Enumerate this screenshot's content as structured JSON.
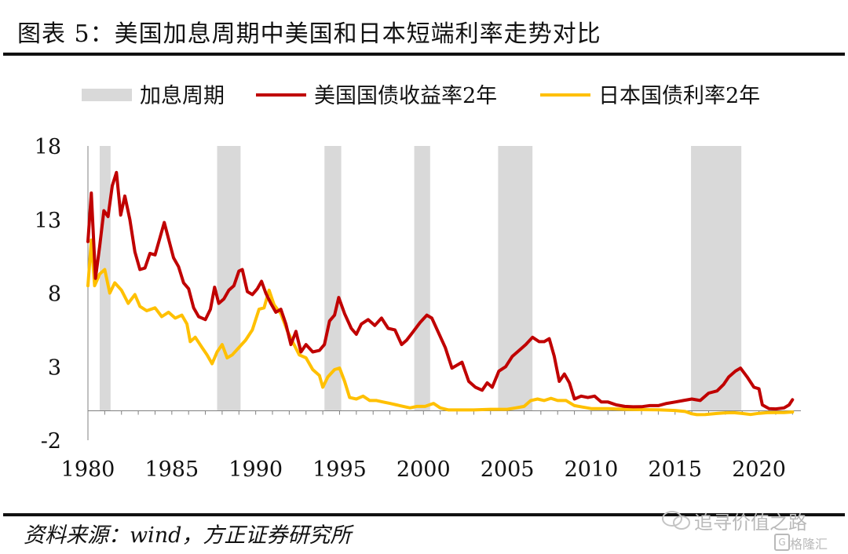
{
  "figure_title": "图表 5：美国加息周期中美国和日本短端利率走势对比",
  "source_note": "资料来源：wind，方正证券研究所",
  "watermark": {
    "line1": "追寻价值之路",
    "line2": "格隆汇",
    "badge": "G"
  },
  "colors": {
    "shade": "#d9d9d9",
    "us": "#c00000",
    "jp": "#ffc000",
    "axis": "#808080",
    "text": "#111111"
  },
  "chart_data": {
    "type": "line",
    "title": "",
    "xlabel": "",
    "ylabel": "",
    "xlim": [
      1980,
      2022.5
    ],
    "ylim": [
      -2,
      18
    ],
    "x_ticks": [
      1980,
      1985,
      1990,
      1995,
      2000,
      2005,
      2010,
      2015,
      2020
    ],
    "y_ticks": [
      -2,
      3,
      8,
      13,
      18
    ],
    "legend": {
      "placement": "top",
      "items": [
        {
          "label": "加息周期",
          "kind": "shade",
          "color": "#d9d9d9"
        },
        {
          "label": "美国国债收益率2年",
          "kind": "line",
          "color": "#c00000"
        },
        {
          "label": "日本国债利率2年",
          "kind": "line",
          "color": "#ffc000"
        }
      ]
    },
    "shaded_periods": [
      [
        1980.7,
        1981.35
      ],
      [
        1987.7,
        1989.1
      ],
      [
        1994.1,
        1995.1
      ],
      [
        1999.45,
        2000.4
      ],
      [
        2004.45,
        2006.5
      ],
      [
        2015.95,
        2018.95
      ]
    ],
    "series": [
      {
        "name": "美国国债收益率2年",
        "color": "#c00000",
        "points": [
          [
            1980.0,
            11.5
          ],
          [
            1980.2,
            14.8
          ],
          [
            1980.45,
            9.0
          ],
          [
            1980.7,
            11.2
          ],
          [
            1980.95,
            13.6
          ],
          [
            1981.2,
            13.2
          ],
          [
            1981.45,
            15.3
          ],
          [
            1981.7,
            16.2
          ],
          [
            1981.95,
            13.3
          ],
          [
            1982.2,
            14.6
          ],
          [
            1982.5,
            13.0
          ],
          [
            1982.8,
            10.8
          ],
          [
            1983.1,
            9.6
          ],
          [
            1983.4,
            9.7
          ],
          [
            1983.7,
            10.7
          ],
          [
            1984.0,
            10.6
          ],
          [
            1984.3,
            11.8
          ],
          [
            1984.55,
            12.8
          ],
          [
            1984.8,
            11.7
          ],
          [
            1985.1,
            10.4
          ],
          [
            1985.4,
            9.8
          ],
          [
            1985.7,
            8.7
          ],
          [
            1986.0,
            8.3
          ],
          [
            1986.3,
            7.0
          ],
          [
            1986.6,
            6.4
          ],
          [
            1987.0,
            6.2
          ],
          [
            1987.3,
            6.9
          ],
          [
            1987.55,
            8.4
          ],
          [
            1987.8,
            7.3
          ],
          [
            1988.1,
            7.6
          ],
          [
            1988.4,
            8.2
          ],
          [
            1988.7,
            8.5
          ],
          [
            1989.0,
            9.5
          ],
          [
            1989.2,
            9.6
          ],
          [
            1989.5,
            8.1
          ],
          [
            1989.8,
            7.9
          ],
          [
            1990.1,
            8.3
          ],
          [
            1990.35,
            8.8
          ],
          [
            1990.6,
            8.0
          ],
          [
            1990.9,
            7.3
          ],
          [
            1991.2,
            6.7
          ],
          [
            1991.5,
            6.9
          ],
          [
            1991.8,
            5.9
          ],
          [
            1992.1,
            4.5
          ],
          [
            1992.4,
            5.4
          ],
          [
            1992.7,
            4.0
          ],
          [
            1993.0,
            4.5
          ],
          [
            1993.4,
            4.0
          ],
          [
            1993.8,
            4.1
          ],
          [
            1994.1,
            4.5
          ],
          [
            1994.4,
            6.1
          ],
          [
            1994.7,
            6.5
          ],
          [
            1994.95,
            7.7
          ],
          [
            1995.3,
            6.6
          ],
          [
            1995.7,
            5.6
          ],
          [
            1996.0,
            5.2
          ],
          [
            1996.3,
            5.9
          ],
          [
            1996.7,
            6.2
          ],
          [
            1997.1,
            5.8
          ],
          [
            1997.5,
            6.3
          ],
          [
            1997.9,
            5.6
          ],
          [
            1998.3,
            5.5
          ],
          [
            1998.7,
            4.5
          ],
          [
            1999.0,
            4.8
          ],
          [
            1999.4,
            5.4
          ],
          [
            1999.8,
            6.0
          ],
          [
            2000.2,
            6.5
          ],
          [
            2000.5,
            6.3
          ],
          [
            2000.9,
            5.3
          ],
          [
            2001.3,
            4.3
          ],
          [
            2001.7,
            2.9
          ],
          [
            2002.0,
            3.1
          ],
          [
            2002.3,
            3.3
          ],
          [
            2002.7,
            2.0
          ],
          [
            2003.1,
            1.6
          ],
          [
            2003.5,
            1.4
          ],
          [
            2003.8,
            1.9
          ],
          [
            2004.1,
            1.6
          ],
          [
            2004.5,
            2.7
          ],
          [
            2004.9,
            3.0
          ],
          [
            2005.3,
            3.7
          ],
          [
            2005.7,
            4.1
          ],
          [
            2006.1,
            4.5
          ],
          [
            2006.5,
            5.0
          ],
          [
            2006.9,
            4.7
          ],
          [
            2007.2,
            4.7
          ],
          [
            2007.5,
            4.9
          ],
          [
            2007.8,
            3.7
          ],
          [
            2008.1,
            2.0
          ],
          [
            2008.4,
            2.5
          ],
          [
            2008.7,
            1.9
          ],
          [
            2009.0,
            0.8
          ],
          [
            2009.4,
            1.0
          ],
          [
            2009.8,
            0.9
          ],
          [
            2010.2,
            1.0
          ],
          [
            2010.6,
            0.6
          ],
          [
            2011.0,
            0.6
          ],
          [
            2011.5,
            0.4
          ],
          [
            2012.0,
            0.3
          ],
          [
            2012.5,
            0.27
          ],
          [
            2013.0,
            0.28
          ],
          [
            2013.5,
            0.35
          ],
          [
            2014.0,
            0.35
          ],
          [
            2014.5,
            0.5
          ],
          [
            2015.0,
            0.6
          ],
          [
            2015.5,
            0.7
          ],
          [
            2016.0,
            0.8
          ],
          [
            2016.5,
            0.7
          ],
          [
            2017.0,
            1.2
          ],
          [
            2017.5,
            1.35
          ],
          [
            2017.9,
            1.8
          ],
          [
            2018.2,
            2.3
          ],
          [
            2018.6,
            2.7
          ],
          [
            2018.9,
            2.9
          ],
          [
            2019.3,
            2.3
          ],
          [
            2019.7,
            1.6
          ],
          [
            2020.0,
            1.5
          ],
          [
            2020.2,
            0.4
          ],
          [
            2020.6,
            0.15
          ],
          [
            2021.0,
            0.13
          ],
          [
            2021.5,
            0.2
          ],
          [
            2021.8,
            0.4
          ],
          [
            2022.0,
            0.75
          ]
        ]
      },
      {
        "name": "日本国债利率2年",
        "color": "#ffc000",
        "points": [
          [
            1980.0,
            8.5
          ],
          [
            1980.2,
            11.6
          ],
          [
            1980.4,
            8.5
          ],
          [
            1980.7,
            9.3
          ],
          [
            1981.0,
            9.6
          ],
          [
            1981.3,
            8.0
          ],
          [
            1981.6,
            8.7
          ],
          [
            1982.0,
            8.2
          ],
          [
            1982.4,
            7.3
          ],
          [
            1982.8,
            7.9
          ],
          [
            1983.1,
            7.1
          ],
          [
            1983.5,
            6.8
          ],
          [
            1984.0,
            7.0
          ],
          [
            1984.4,
            6.4
          ],
          [
            1984.8,
            6.7
          ],
          [
            1985.2,
            6.3
          ],
          [
            1985.6,
            6.5
          ],
          [
            1985.9,
            5.9
          ],
          [
            1986.1,
            4.7
          ],
          [
            1986.4,
            5.0
          ],
          [
            1986.8,
            4.3
          ],
          [
            1987.1,
            3.8
          ],
          [
            1987.4,
            3.2
          ],
          [
            1987.7,
            4.0
          ],
          [
            1988.0,
            4.5
          ],
          [
            1988.3,
            3.6
          ],
          [
            1988.6,
            3.8
          ],
          [
            1989.0,
            4.3
          ],
          [
            1989.4,
            4.8
          ],
          [
            1989.8,
            5.5
          ],
          [
            1990.2,
            6.9
          ],
          [
            1990.5,
            7.0
          ],
          [
            1990.8,
            8.2
          ],
          [
            1991.1,
            7.2
          ],
          [
            1991.5,
            6.6
          ],
          [
            1991.9,
            5.4
          ],
          [
            1992.2,
            4.7
          ],
          [
            1992.6,
            3.8
          ],
          [
            1993.0,
            3.6
          ],
          [
            1993.4,
            2.8
          ],
          [
            1993.8,
            2.4
          ],
          [
            1994.0,
            1.6
          ],
          [
            1994.3,
            2.3
          ],
          [
            1994.7,
            2.8
          ],
          [
            1995.0,
            2.9
          ],
          [
            1995.3,
            2.0
          ],
          [
            1995.6,
            0.9
          ],
          [
            1996.0,
            0.8
          ],
          [
            1996.4,
            1.0
          ],
          [
            1996.8,
            0.7
          ],
          [
            1997.2,
            0.7
          ],
          [
            1997.6,
            0.6
          ],
          [
            1998.0,
            0.5
          ],
          [
            1998.4,
            0.4
          ],
          [
            1998.8,
            0.3
          ],
          [
            1999.2,
            0.2
          ],
          [
            1999.6,
            0.3
          ],
          [
            2000.1,
            0.3
          ],
          [
            2000.6,
            0.5
          ],
          [
            2001.0,
            0.2
          ],
          [
            2001.5,
            0.06
          ],
          [
            2002.0,
            0.06
          ],
          [
            2003.0,
            0.06
          ],
          [
            2004.0,
            0.1
          ],
          [
            2004.5,
            0.1
          ],
          [
            2005.0,
            0.1
          ],
          [
            2005.5,
            0.2
          ],
          [
            2006.0,
            0.3
          ],
          [
            2006.4,
            0.7
          ],
          [
            2006.8,
            0.8
          ],
          [
            2007.2,
            0.7
          ],
          [
            2007.6,
            0.85
          ],
          [
            2008.0,
            0.7
          ],
          [
            2008.5,
            0.7
          ],
          [
            2009.0,
            0.35
          ],
          [
            2009.5,
            0.25
          ],
          [
            2010.0,
            0.15
          ],
          [
            2011.0,
            0.15
          ],
          [
            2012.0,
            0.1
          ],
          [
            2013.0,
            0.08
          ],
          [
            2014.0,
            0.07
          ],
          [
            2015.0,
            0.02
          ],
          [
            2015.6,
            -0.05
          ],
          [
            2016.0,
            -0.2
          ],
          [
            2016.3,
            -0.26
          ],
          [
            2016.8,
            -0.25
          ],
          [
            2017.5,
            -0.18
          ],
          [
            2018.0,
            -0.14
          ],
          [
            2018.5,
            -0.13
          ],
          [
            2019.0,
            -0.18
          ],
          [
            2019.5,
            -0.25
          ],
          [
            2020.0,
            -0.17
          ],
          [
            2020.5,
            -0.13
          ],
          [
            2021.0,
            -0.12
          ],
          [
            2021.5,
            -0.12
          ],
          [
            2022.0,
            -0.08
          ]
        ]
      }
    ]
  }
}
